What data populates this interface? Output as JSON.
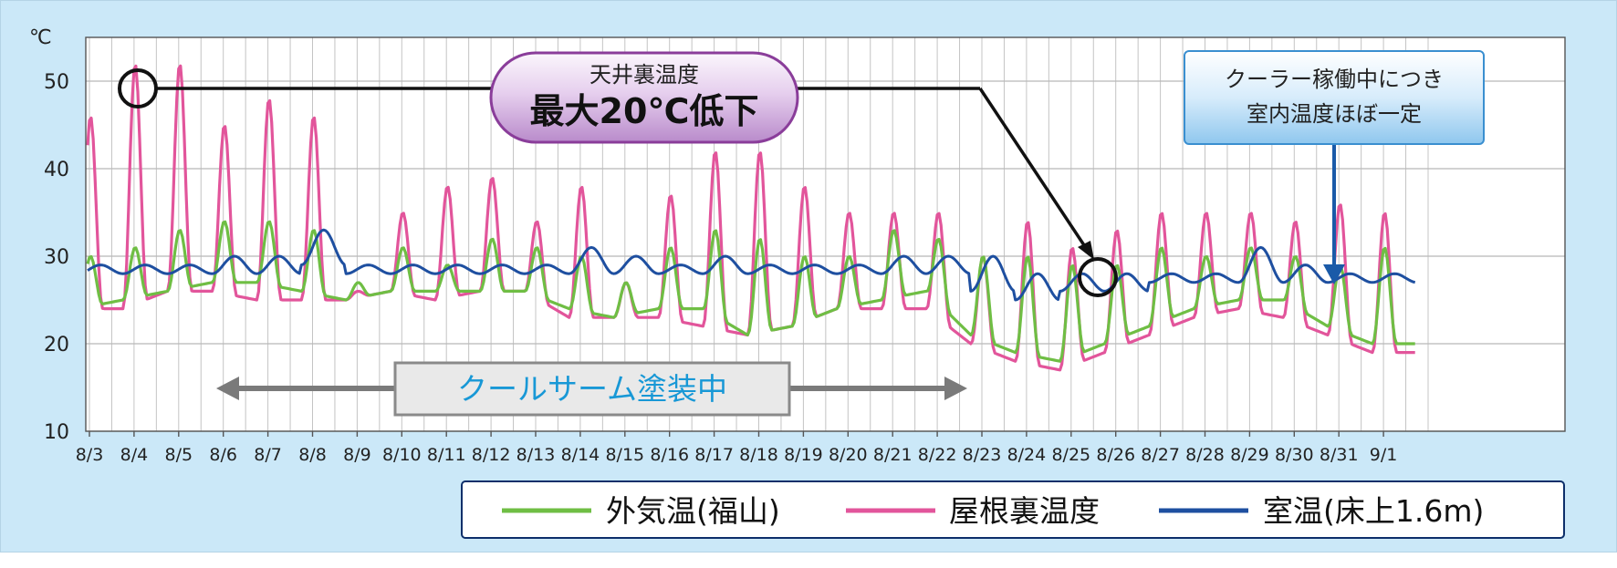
{
  "chart_data": {
    "type": "line",
    "ylabel": "℃",
    "ylim": [
      10,
      55
    ],
    "yticks": [
      10,
      20,
      30,
      40,
      50
    ],
    "grid": true,
    "legend_position": "bottom",
    "x": [
      "8/3",
      "8/4",
      "8/5",
      "8/6",
      "8/7",
      "8/8",
      "8/9",
      "8/10",
      "8/11",
      "8/12",
      "8/13",
      "8/14",
      "8/15",
      "8/16",
      "8/17",
      "8/18",
      "8/19",
      "8/20",
      "8/21",
      "8/22",
      "8/23",
      "8/24",
      "8/25",
      "8/26",
      "8/27",
      "8/28",
      "8/29",
      "8/30",
      "8/31",
      "9/1"
    ],
    "series": [
      {
        "name": "外気温(福山)",
        "color": "#6fbe44",
        "peaks": [
          30,
          31,
          33,
          34,
          34,
          33,
          27,
          31,
          29,
          32,
          31,
          30,
          27,
          31,
          33,
          32,
          30,
          30,
          33,
          32,
          30,
          30,
          29,
          29,
          31,
          30,
          31,
          30,
          29,
          31
        ],
        "troughs": [
          24,
          25,
          26,
          27,
          27,
          26,
          25,
          26,
          26,
          26,
          26,
          24,
          23,
          24,
          24,
          21,
          22,
          24,
          25,
          26,
          21,
          19,
          18,
          20,
          22,
          24,
          25,
          25,
          22,
          20
        ]
      },
      {
        "name": "屋根裏温度",
        "color": "#e2559b",
        "peaks": [
          46,
          52,
          52,
          45,
          48,
          46,
          26,
          35,
          38,
          39,
          34,
          38,
          27,
          37,
          42,
          42,
          38,
          35,
          35,
          35,
          30,
          34,
          31,
          33,
          35,
          35,
          35,
          34,
          36,
          35
        ],
        "troughs": [
          24,
          24,
          26,
          26,
          25,
          25,
          25,
          26,
          25,
          26,
          26,
          23,
          23,
          23,
          22,
          21,
          22,
          24,
          24,
          24,
          20,
          18,
          17,
          19,
          21,
          23,
          24,
          23,
          21,
          19
        ]
      },
      {
        "name": "室温(床上1.6m)",
        "color": "#1e4fa0",
        "peaks": [
          29,
          29,
          29,
          30,
          30,
          33,
          29,
          29,
          29,
          29,
          29,
          31,
          30,
          29,
          30,
          29,
          29,
          29,
          30,
          30,
          30,
          28,
          28,
          28,
          28,
          28,
          31,
          29,
          28,
          28
        ],
        "troughs": [
          28,
          28,
          28,
          28,
          28,
          29,
          28,
          28,
          28,
          28,
          28,
          28,
          28,
          28,
          28,
          28,
          28,
          28,
          28,
          28,
          26,
          25,
          26,
          26,
          27,
          27,
          27,
          27,
          27,
          27
        ]
      }
    ]
  },
  "annotation_ceiling": {
    "title": "天井裏温度",
    "headline": "最大20℃低下"
  },
  "annotation_cooler": {
    "line1": "クーラー稼働中につき",
    "line2": "室内温度ほぼ一定"
  },
  "coating_period_label": "クールサーム塗装中",
  "legend": {
    "items": [
      {
        "label": "外気温(福山)",
        "color": "#6fbe44"
      },
      {
        "label": "屋根裏温度",
        "color": "#e2559b"
      },
      {
        "label": "室温(床上1.6m)",
        "color": "#1e4fa0"
      }
    ]
  },
  "colors": {
    "background": "#cbe8f8",
    "grid": "#bdbdbd",
    "arrow_gray": "#7a7a7a",
    "label_blue": "#1898d6",
    "cooler_arrow": "#1a5aa8"
  }
}
